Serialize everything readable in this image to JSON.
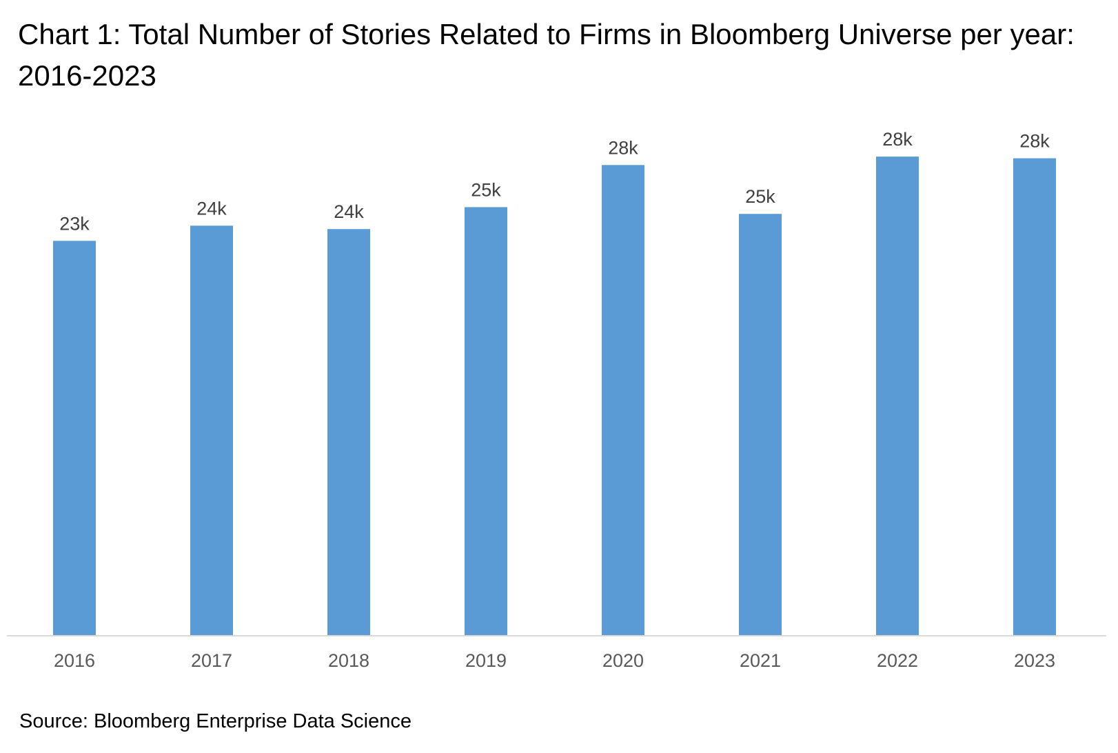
{
  "chart_data": {
    "type": "bar",
    "title": "Chart 1: Total Number of Stories Related to Firms in Bloomberg Universe per year: 2016-2023",
    "source": "Source: Bloomberg Enterprise Data Science",
    "xlabel": "",
    "ylabel": "",
    "categories": [
      "2016",
      "2017",
      "2018",
      "2019",
      "2020",
      "2021",
      "2022",
      "2023"
    ],
    "values": [
      23400,
      24300,
      24100,
      25400,
      27900,
      25000,
      28400,
      28300
    ],
    "data_labels": [
      "23k",
      "24k",
      "24k",
      "25k",
      "28k",
      "25k",
      "28k",
      "28k"
    ],
    "ylim": [
      0,
      30000
    ],
    "grid": false,
    "legend": "none",
    "colors": {
      "bar": "#5B9BD5",
      "axis": "#D9D9D9",
      "label_text": "#404040",
      "tick_text": "#595959"
    }
  }
}
